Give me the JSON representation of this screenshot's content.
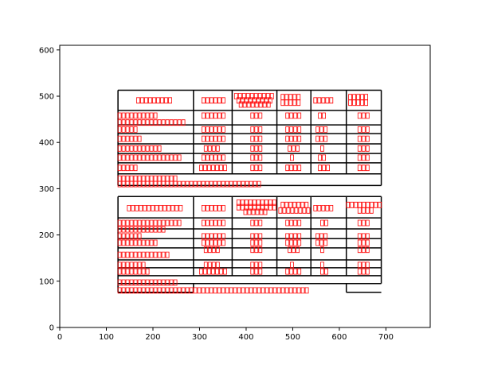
{
  "chart_data": {
    "type": "layout-boxes",
    "xlim": [
      0,
      795
    ],
    "ylim": [
      0,
      610
    ],
    "xticks": [
      0,
      100,
      200,
      300,
      400,
      500,
      600,
      700
    ],
    "yticks": [
      0,
      100,
      200,
      300,
      400,
      500,
      600
    ],
    "line_color": "#000000",
    "glyph_color": "#ff0000",
    "segments": [
      [
        125,
        307,
        690,
        307
      ],
      [
        125,
        513,
        690,
        513
      ],
      [
        125,
        307,
        125,
        513
      ],
      [
        690,
        307,
        690,
        513
      ],
      [
        125,
        469,
        690,
        469
      ],
      [
        125,
        438,
        690,
        438
      ],
      [
        125,
        419,
        690,
        419
      ],
      [
        125,
        397,
        690,
        397
      ],
      [
        125,
        376,
        690,
        376
      ],
      [
        125,
        356,
        690,
        356
      ],
      [
        125,
        332,
        690,
        332
      ],
      [
        287,
        332,
        287,
        513
      ],
      [
        370,
        332,
        370,
        513
      ],
      [
        466,
        332,
        466,
        513
      ],
      [
        539,
        332,
        539,
        513
      ],
      [
        615,
        332,
        615,
        513
      ],
      [
        125,
        95,
        690,
        95
      ],
      [
        125,
        283,
        690,
        283
      ],
      [
        125,
        76,
        125,
        283
      ],
      [
        690,
        95,
        690,
        283
      ],
      [
        125,
        237,
        690,
        237
      ],
      [
        125,
        213,
        690,
        213
      ],
      [
        125,
        192,
        690,
        192
      ],
      [
        125,
        172,
        690,
        172
      ],
      [
        125,
        146,
        690,
        146
      ],
      [
        125,
        129,
        690,
        129
      ],
      [
        125,
        112,
        690,
        112
      ],
      [
        287,
        112,
        287,
        283
      ],
      [
        370,
        112,
        370,
        283
      ],
      [
        466,
        112,
        466,
        283
      ],
      [
        539,
        112,
        539,
        283
      ],
      [
        615,
        112,
        615,
        283
      ],
      [
        125,
        76,
        287,
        76
      ],
      [
        287,
        76,
        287,
        95
      ],
      [
        615,
        76,
        690,
        76
      ],
      [
        615,
        76,
        615,
        95
      ]
    ],
    "glyph_rows": [
      [
        165,
        245,
        491
      ],
      [
        305,
        355,
        491
      ],
      [
        375,
        465,
        500
      ],
      [
        380,
        460,
        491
      ],
      [
        385,
        455,
        482
      ],
      [
        475,
        520,
        498
      ],
      [
        475,
        520,
        486
      ],
      [
        545,
        590,
        491
      ],
      [
        620,
        665,
        498
      ],
      [
        620,
        665,
        486
      ],
      [
        125,
        215,
        458
      ],
      [
        305,
        355,
        458
      ],
      [
        410,
        435,
        458
      ],
      [
        485,
        520,
        458
      ],
      [
        555,
        575,
        458
      ],
      [
        640,
        665,
        458
      ],
      [
        125,
        270,
        443
      ],
      [
        125,
        170,
        428
      ],
      [
        305,
        355,
        428
      ],
      [
        410,
        440,
        428
      ],
      [
        485,
        520,
        428
      ],
      [
        550,
        580,
        428
      ],
      [
        640,
        665,
        428
      ],
      [
        125,
        180,
        408
      ],
      [
        305,
        355,
        408
      ],
      [
        410,
        440,
        408
      ],
      [
        485,
        520,
        408
      ],
      [
        550,
        580,
        408
      ],
      [
        640,
        665,
        408
      ],
      [
        125,
        220,
        387
      ],
      [
        310,
        350,
        387
      ],
      [
        410,
        435,
        387
      ],
      [
        490,
        515,
        387
      ],
      [
        560,
        570,
        387
      ],
      [
        640,
        665,
        387
      ],
      [
        125,
        265,
        367
      ],
      [
        305,
        355,
        367
      ],
      [
        410,
        435,
        367
      ],
      [
        495,
        510,
        367
      ],
      [
        555,
        575,
        367
      ],
      [
        640,
        665,
        367
      ],
      [
        125,
        170,
        345
      ],
      [
        300,
        360,
        345
      ],
      [
        410,
        440,
        345
      ],
      [
        485,
        525,
        345
      ],
      [
        555,
        580,
        345
      ],
      [
        640,
        665,
        345
      ],
      [
        125,
        260,
        322
      ],
      [
        125,
        435,
        310
      ],
      [
        145,
        265,
        258
      ],
      [
        305,
        355,
        258
      ],
      [
        380,
        465,
        270
      ],
      [
        380,
        465,
        260
      ],
      [
        395,
        450,
        250
      ],
      [
        475,
        540,
        265
      ],
      [
        470,
        545,
        253
      ],
      [
        545,
        590,
        258
      ],
      [
        615,
        695,
        265
      ],
      [
        640,
        675,
        253
      ],
      [
        125,
        265,
        226
      ],
      [
        305,
        355,
        226
      ],
      [
        410,
        440,
        226
      ],
      [
        485,
        520,
        226
      ],
      [
        560,
        580,
        226
      ],
      [
        640,
        665,
        226
      ],
      [
        125,
        230,
        212
      ],
      [
        125,
        175,
        197
      ],
      [
        305,
        355,
        197
      ],
      [
        410,
        440,
        197
      ],
      [
        485,
        520,
        197
      ],
      [
        550,
        580,
        197
      ],
      [
        640,
        665,
        197
      ],
      [
        125,
        215,
        183
      ],
      [
        305,
        355,
        183
      ],
      [
        410,
        440,
        183
      ],
      [
        485,
        520,
        183
      ],
      [
        550,
        580,
        183
      ],
      [
        640,
        665,
        183
      ],
      [
        310,
        345,
        168
      ],
      [
        410,
        435,
        168
      ],
      [
        490,
        515,
        168
      ],
      [
        560,
        570,
        168
      ],
      [
        640,
        665,
        168
      ],
      [
        125,
        240,
        157
      ],
      [
        125,
        190,
        135
      ],
      [
        310,
        350,
        135
      ],
      [
        410,
        440,
        135
      ],
      [
        495,
        510,
        135
      ],
      [
        560,
        575,
        135
      ],
      [
        640,
        665,
        135
      ],
      [
        125,
        195,
        121
      ],
      [
        300,
        360,
        121
      ],
      [
        410,
        440,
        121
      ],
      [
        485,
        525,
        121
      ],
      [
        560,
        580,
        121
      ],
      [
        640,
        665,
        121
      ],
      [
        125,
        260,
        97
      ],
      [
        125,
        540,
        80
      ]
    ]
  }
}
